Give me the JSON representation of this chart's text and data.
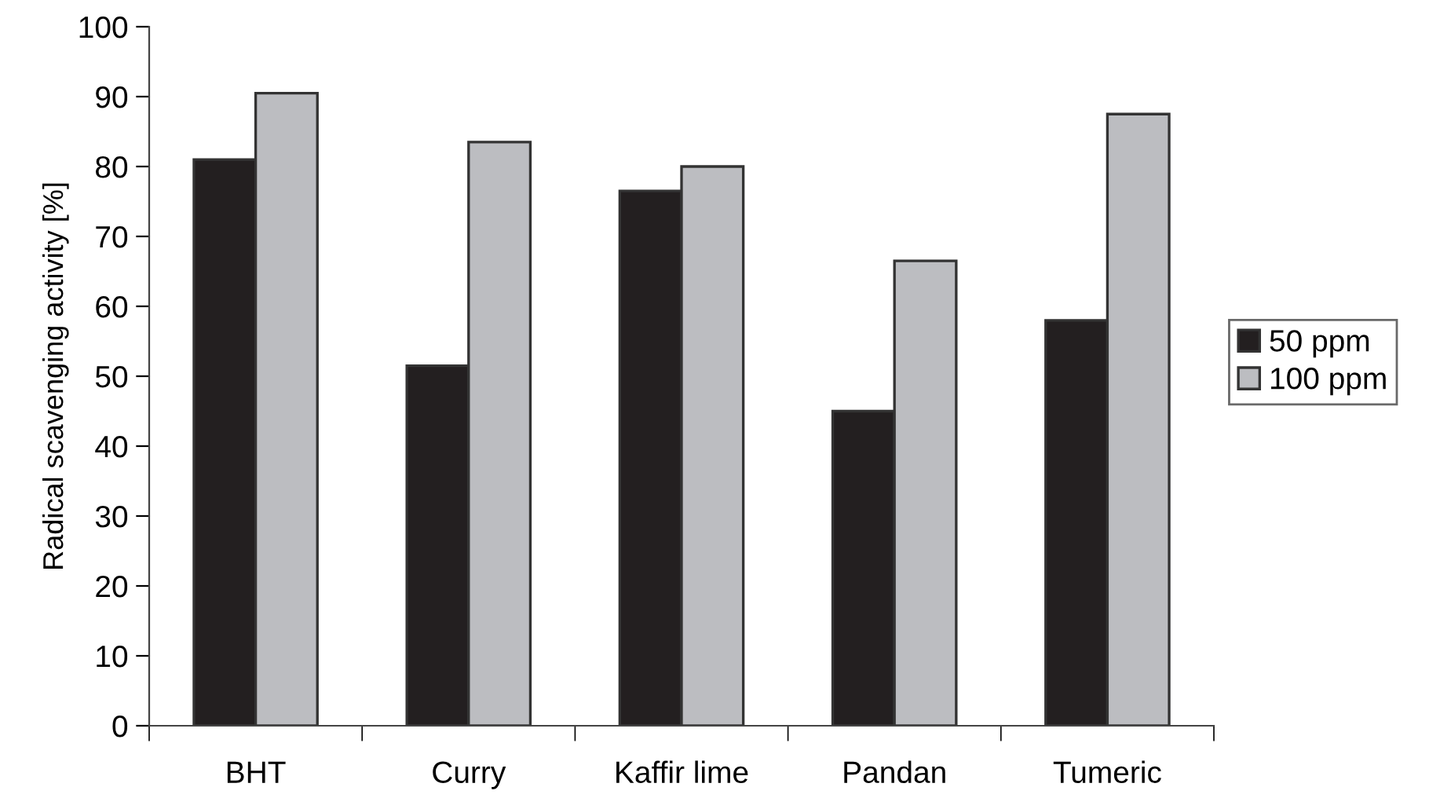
{
  "chart_data": {
    "type": "bar",
    "ylabel": "Radical scavenging activity [%]",
    "categories": [
      "BHT",
      "Curry",
      "Kaffir lime",
      "Pandan",
      "Tumeric"
    ],
    "series": [
      {
        "name": "50 ppm",
        "color": "#231f20",
        "values": [
          81,
          51.5,
          76.5,
          45,
          58
        ]
      },
      {
        "name": "100 ppm",
        "color": "#bcbdc1",
        "values": [
          90.5,
          83.5,
          80,
          66.5,
          87.5
        ]
      }
    ],
    "ylim": [
      0,
      100
    ],
    "yticks": [
      0,
      10,
      20,
      30,
      40,
      50,
      60,
      70,
      80,
      90,
      100
    ],
    "grid": false,
    "legend": "right"
  }
}
